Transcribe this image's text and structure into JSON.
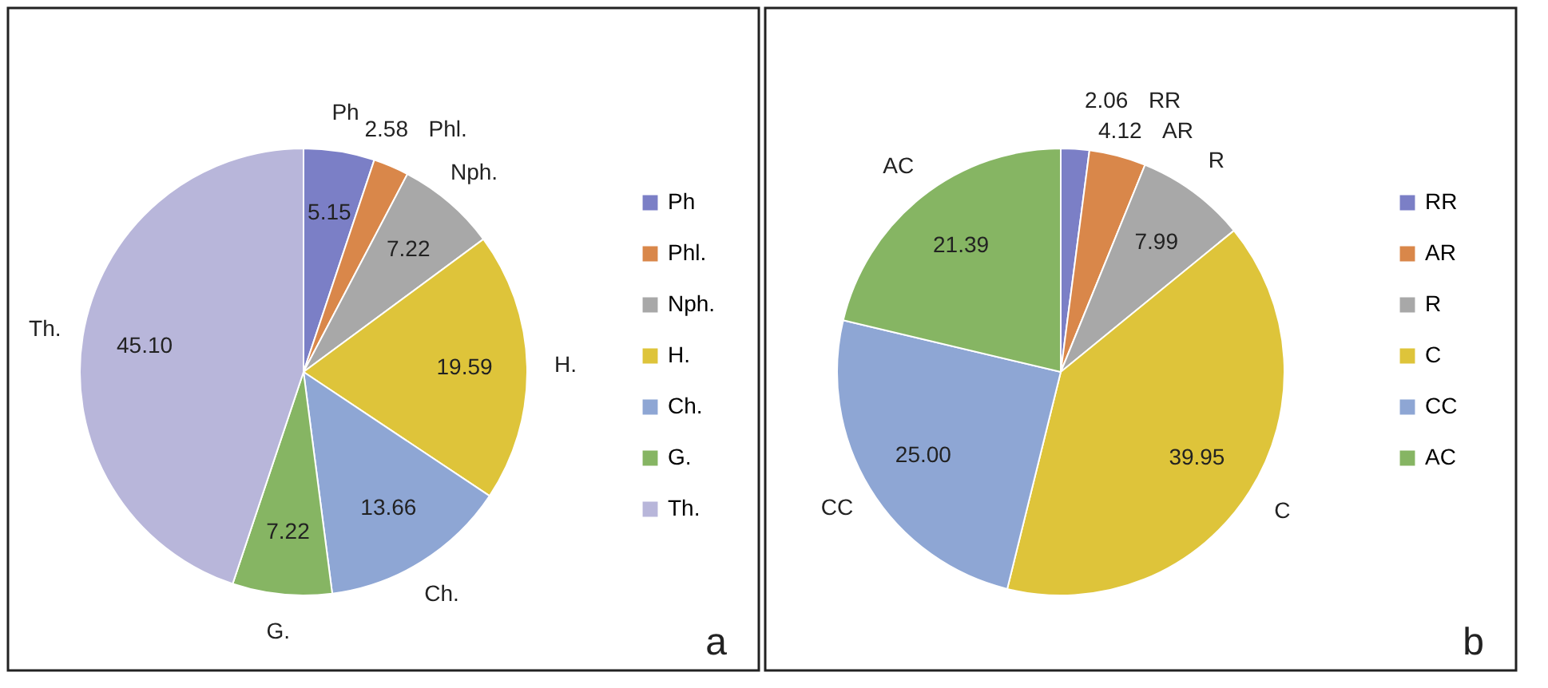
{
  "chart_data": [
    {
      "type": "pie",
      "categories": [
        "Ph",
        "Phl.",
        "Nph.",
        "H.",
        "Ch.",
        "G.",
        "Th."
      ],
      "values": [
        5.15,
        2.58,
        7.22,
        19.59,
        13.66,
        7.22,
        45.1
      ],
      "colors": [
        "#7b7fc6",
        "#d9874a",
        "#a8a8a8",
        "#dec43a",
        "#8ea6d4",
        "#86b563",
        "#b8b6da"
      ],
      "value_labels": [
        "5.15",
        "2.58",
        "7.22",
        "19.59",
        "13.66",
        "7.22",
        "45.10"
      ],
      "legend": "right",
      "annotations": [
        "a"
      ]
    },
    {
      "type": "pie",
      "categories": [
        "RR",
        "AR",
        "R",
        "C",
        "CC",
        "AC"
      ],
      "values": [
        2.06,
        4.12,
        7.99,
        39.95,
        25.0,
        21.39
      ],
      "colors": [
        "#7b7fc6",
        "#d9874a",
        "#a8a8a8",
        "#dec43a",
        "#8ea6d4",
        "#86b563"
      ],
      "value_labels": [
        "2.06",
        "4.12",
        "7.99",
        "39.95",
        "25.00",
        "21.39"
      ],
      "legend": "right",
      "annotations": [
        "b"
      ]
    }
  ]
}
